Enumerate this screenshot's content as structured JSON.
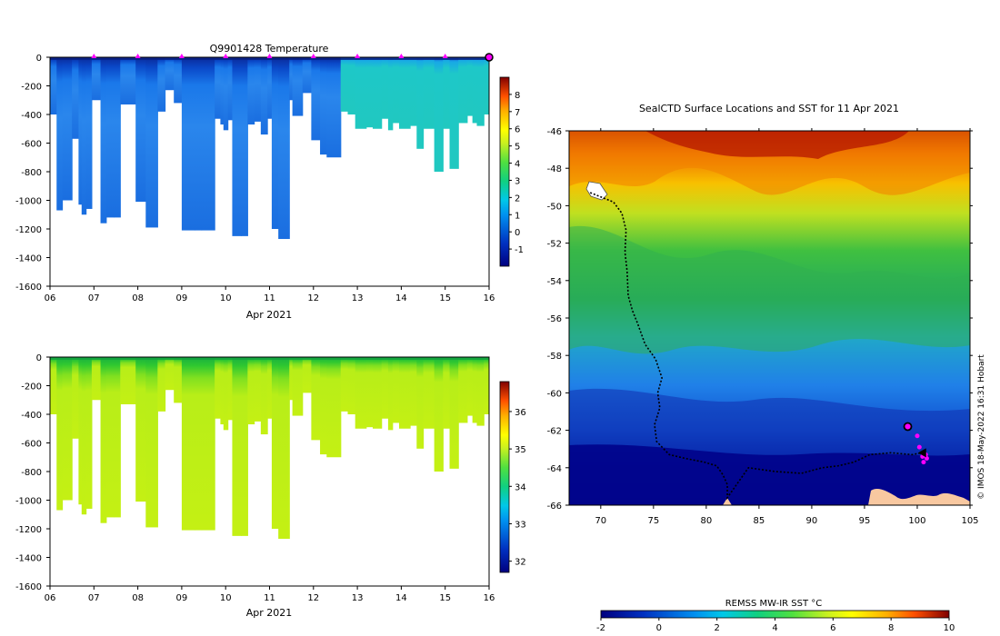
{
  "credit": "© IMOS 18-May-2022 16:31 Hobart",
  "chart_data": [
    {
      "id": "temperature",
      "type": "heatmap",
      "title": "Q9901428  Temperature",
      "xlabel": "Apr 2021",
      "x_ticks": [
        "06",
        "07",
        "08",
        "09",
        "10",
        "11",
        "12",
        "13",
        "14",
        "15",
        "16"
      ],
      "y_ticks": [
        "0",
        "-200",
        "-400",
        "-600",
        "-800",
        "-1000",
        "-1200",
        "-1400",
        "-1600"
      ],
      "ylim": [
        -1600,
        0
      ],
      "xlim": [
        6,
        16
      ],
      "colorbar_ticks": [
        "-1",
        "0",
        "1",
        "2",
        "3",
        "4",
        "5",
        "6",
        "7",
        "8"
      ],
      "colorbar_range": [
        -2,
        9
      ],
      "surface_markers": [
        7,
        8,
        9,
        10,
        11,
        12,
        13,
        14,
        15
      ],
      "last_position_marker": 16,
      "profile_depths": [
        [
          6.0,
          400
        ],
        [
          6.15,
          1070
        ],
        [
          6.28,
          1000
        ],
        [
          6.5,
          570
        ],
        [
          6.65,
          1030
        ],
        [
          6.72,
          1100
        ],
        [
          6.82,
          1060
        ],
        [
          6.95,
          300
        ],
        [
          7.15,
          1160
        ],
        [
          7.28,
          1120
        ],
        [
          7.45,
          1120
        ],
        [
          7.6,
          330
        ],
        [
          7.95,
          1010
        ],
        [
          8.18,
          1190
        ],
        [
          8.45,
          380
        ],
        [
          8.62,
          230
        ],
        [
          8.82,
          320
        ],
        [
          9.0,
          1210
        ],
        [
          9.3,
          1210
        ],
        [
          9.45,
          1210
        ],
        [
          9.75,
          430
        ],
        [
          9.88,
          470
        ],
        [
          9.95,
          510
        ],
        [
          10.05,
          440
        ],
        [
          10.15,
          1250
        ],
        [
          10.35,
          1250
        ],
        [
          10.5,
          470
        ],
        [
          10.65,
          450
        ],
        [
          10.8,
          540
        ],
        [
          10.95,
          430
        ],
        [
          11.05,
          1200
        ],
        [
          11.2,
          1270
        ],
        [
          11.45,
          300
        ],
        [
          11.52,
          410
        ],
        [
          11.75,
          250
        ],
        [
          11.95,
          580
        ],
        [
          12.15,
          680
        ],
        [
          12.3,
          700
        ],
        [
          12.62,
          380
        ],
        [
          12.78,
          400
        ],
        [
          12.95,
          500
        ],
        [
          13.2,
          490
        ],
        [
          13.35,
          500
        ],
        [
          13.55,
          430
        ],
        [
          13.7,
          510
        ],
        [
          13.8,
          460
        ],
        [
          13.95,
          500
        ],
        [
          14.2,
          480
        ],
        [
          14.35,
          640
        ],
        [
          14.5,
          500
        ],
        [
          14.75,
          800
        ],
        [
          14.95,
          500
        ],
        [
          15.1,
          780
        ],
        [
          15.3,
          460
        ],
        [
          15.5,
          410
        ],
        [
          15.62,
          460
        ],
        [
          15.72,
          480
        ],
        [
          15.88,
          400
        ]
      ]
    },
    {
      "id": "salinity",
      "type": "heatmap",
      "title": "",
      "xlabel": "Apr 2021",
      "x_ticks": [
        "06",
        "07",
        "08",
        "09",
        "10",
        "11",
        "12",
        "13",
        "14",
        "15",
        "16"
      ],
      "y_ticks": [
        "0",
        "-200",
        "-400",
        "-600",
        "-800",
        "-1000",
        "-1200",
        "-1400",
        "-1600"
      ],
      "ylim": [
        -1600,
        0
      ],
      "xlim": [
        6,
        16
      ],
      "colorbar_ticks": [
        "32",
        "33",
        "34",
        "35",
        "36"
      ],
      "colorbar_range": [
        31.7,
        36.8
      ]
    },
    {
      "id": "sst_map",
      "type": "heatmap",
      "title": "SealCTD Surface Locations and SST for 11 Apr 2021",
      "x_ticks": [
        "70",
        "75",
        "80",
        "85",
        "90",
        "95",
        "100",
        "105"
      ],
      "y_ticks": [
        "-46",
        "-48",
        "-50",
        "-52",
        "-54",
        "-56",
        "-58",
        "-60",
        "-62",
        "-64",
        "-66"
      ],
      "xlim": [
        67,
        105
      ],
      "ylim": [
        -66,
        -46
      ],
      "colorbar_label": "REMSS MW-IR SST °C",
      "colorbar_ticks": [
        "-2",
        "0",
        "2",
        "4",
        "6",
        "8",
        "10"
      ],
      "colorbar_range": [
        -2,
        10
      ],
      "track": [
        [
          69.0,
          -49.3
        ],
        [
          70.3,
          -49.6
        ],
        [
          71.2,
          -49.8
        ],
        [
          72.0,
          -50.4
        ],
        [
          72.4,
          -51.3
        ],
        [
          72.3,
          -52.5
        ],
        [
          72.5,
          -53.5
        ],
        [
          72.6,
          -54.8
        ],
        [
          73.0,
          -55.6
        ],
        [
          73.5,
          -56.3
        ],
        [
          74.2,
          -57.4
        ],
        [
          75.2,
          -58.2
        ],
        [
          75.8,
          -59.2
        ],
        [
          75.4,
          -60.0
        ],
        [
          75.6,
          -60.8
        ],
        [
          75.1,
          -61.7
        ],
        [
          75.3,
          -62.6
        ],
        [
          76.5,
          -63.3
        ],
        [
          78.0,
          -63.5
        ],
        [
          79.8,
          -63.7
        ],
        [
          81.0,
          -63.9
        ],
        [
          81.6,
          -64.4
        ],
        [
          82.0,
          -64.9
        ],
        [
          82.0,
          -65.6
        ],
        [
          84.0,
          -64.0
        ],
        [
          86.5,
          -64.2
        ],
        [
          89.0,
          -64.3
        ],
        [
          91.0,
          -64.0
        ],
        [
          92.5,
          -63.9
        ],
        [
          94.0,
          -63.7
        ],
        [
          95.5,
          -63.3
        ],
        [
          97.5,
          -63.2
        ],
        [
          99.5,
          -63.3
        ],
        [
          100.5,
          -63.2
        ]
      ],
      "profile_points": [
        [
          99.1,
          -61.8
        ],
        [
          100.0,
          -62.3
        ],
        [
          100.2,
          -62.9
        ],
        [
          100.5,
          -63.4
        ],
        [
          100.9,
          -63.5
        ],
        [
          100.6,
          -63.7
        ],
        [
          100.8,
          -63.3
        ]
      ],
      "current_position": [
        99.1,
        -61.8
      ]
    }
  ]
}
